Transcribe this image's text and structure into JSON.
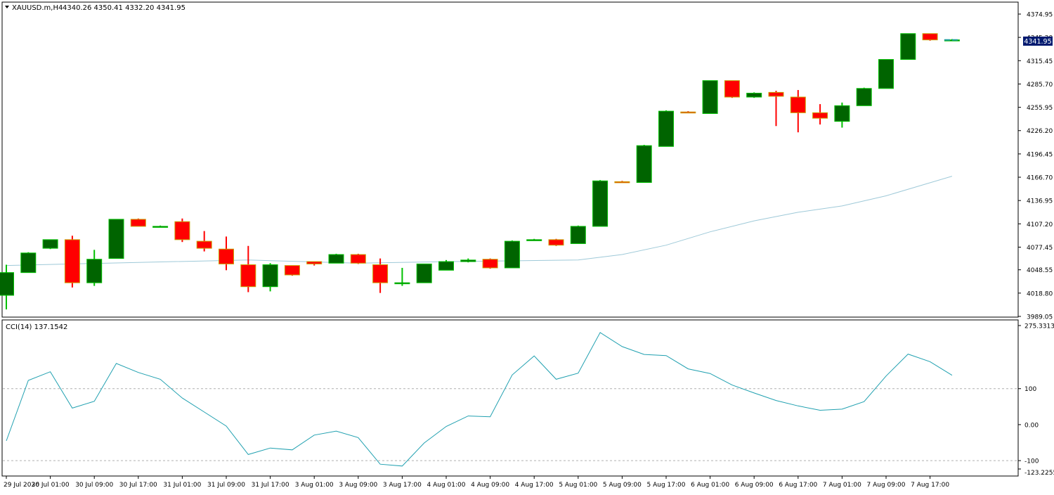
{
  "header": {
    "symbol": "XAUUSD.m,H4",
    "ohlc": "4340.26 4350.41 4332.20 4341.95",
    "price_tag": "4341.95"
  },
  "indicator": {
    "label": "CCI(14) 137.1542"
  },
  "colors": {
    "bull_body": "#006400",
    "bull_wick": "#00c000",
    "bear_body": "#ff0000",
    "bear_wick": "#ff0000",
    "ma_line": "#9ec9d8",
    "cci_line": "#20a0b0",
    "price_tag_bg": "#001a70",
    "bid_line": "#20a0a0"
  },
  "chart_data": [
    {
      "type": "candlestick",
      "symbol": "XAUUSD.m",
      "timeframe": "H4",
      "ylim": [
        3989.05,
        4389.0
      ],
      "y_ticks": [
        "4374.95",
        "4345.20",
        "4315.45",
        "4285.70",
        "4255.95",
        "4226.20",
        "4196.45",
        "4166.70",
        "4136.95",
        "4107.20",
        "4077.45",
        "4048.55",
        "4018.80",
        "3989.05"
      ],
      "y_tick_values": [
        4374.95,
        4345.2,
        4315.45,
        4285.7,
        4255.95,
        4226.2,
        4196.45,
        4166.7,
        4136.95,
        4107.2,
        4077.45,
        4048.55,
        4018.8,
        3989.05
      ],
      "x_labels": [
        "29 Jul 2026",
        "30 Jul 01:00",
        "30 Jul 09:00",
        "30 Jul 17:00",
        "31 Jul 01:00",
        "31 Jul 09:00",
        "31 Jul 17:00",
        "3 Aug 01:00",
        "3 Aug 09:00",
        "3 Aug 17:00",
        "4 Aug 01:00",
        "4 Aug 09:00",
        "4 Aug 17:00",
        "5 Aug 01:00",
        "5 Aug 09:00",
        "5 Aug 17:00",
        "6 Aug 01:00",
        "6 Aug 09:00",
        "6 Aug 17:00",
        "7 Aug 01:00",
        "7 Aug 09:00",
        "7 Aug 17:00"
      ],
      "candles": [
        {
          "o": 4016,
          "h": 4055,
          "l": 3998,
          "c": 4045
        },
        {
          "o": 4045,
          "h": 4071,
          "l": 4045,
          "c": 4070
        },
        {
          "o": 4076,
          "h": 4087,
          "l": 4075,
          "c": 4087
        },
        {
          "o": 4087,
          "h": 4092,
          "l": 4026,
          "c": 4032
        },
        {
          "o": 4032,
          "h": 4074,
          "l": 4028,
          "c": 4062
        },
        {
          "o": 4063,
          "h": 4113,
          "l": 4063,
          "c": 4113
        },
        {
          "o": 4113,
          "h": 4114,
          "l": 4104,
          "c": 4104
        },
        {
          "o": 4104,
          "h": 4105,
          "l": 4103,
          "c": 4104
        },
        {
          "o": 4110,
          "h": 4114,
          "l": 4084,
          "c": 4087
        },
        {
          "o": 4085,
          "h": 4098,
          "l": 4072,
          "c": 4076
        },
        {
          "o": 4075,
          "h": 4091,
          "l": 4048,
          "c": 4056
        },
        {
          "o": 4055,
          "h": 4079,
          "l": 4020,
          "c": 4027
        },
        {
          "o": 4027,
          "h": 4057,
          "l": 4021,
          "c": 4055
        },
        {
          "o": 4054,
          "h": 4054,
          "l": 4041,
          "c": 4042
        },
        {
          "o": 4059,
          "h": 4059,
          "l": 4054,
          "c": 4056
        },
        {
          "o": 4057,
          "h": 4069,
          "l": 4057,
          "c": 4068
        },
        {
          "o": 4068,
          "h": 4069,
          "l": 4056,
          "c": 4057
        },
        {
          "o": 4055,
          "h": 4063,
          "l": 4019,
          "c": 4032
        },
        {
          "o": 4031,
          "h": 4051,
          "l": 4028,
          "c": 4032
        },
        {
          "o": 4032,
          "h": 4056,
          "l": 4032,
          "c": 4056
        },
        {
          "o": 4048,
          "h": 4061,
          "l": 4048,
          "c": 4059
        },
        {
          "o": 4059,
          "h": 4063,
          "l": 4058,
          "c": 4061
        },
        {
          "o": 4062,
          "h": 4063,
          "l": 4050,
          "c": 4051
        },
        {
          "o": 4051,
          "h": 4086,
          "l": 4051,
          "c": 4085
        },
        {
          "o": 4087,
          "h": 4088,
          "l": 4086,
          "c": 4087
        },
        {
          "o": 4087,
          "h": 4088,
          "l": 4079,
          "c": 4080
        },
        {
          "o": 4082,
          "h": 4105,
          "l": 4082,
          "c": 4104
        },
        {
          "o": 4104,
          "h": 4163,
          "l": 4104,
          "c": 4162
        },
        {
          "o": 4161,
          "h": 4162,
          "l": 4160,
          "c": 4160
        },
        {
          "o": 4160,
          "h": 4208,
          "l": 4160,
          "c": 4207
        },
        {
          "o": 4206,
          "h": 4252,
          "l": 4206,
          "c": 4251
        },
        {
          "o": 4250,
          "h": 4251,
          "l": 4249,
          "c": 4249
        },
        {
          "o": 4248,
          "h": 4290,
          "l": 4248,
          "c": 4290
        },
        {
          "o": 4290,
          "h": 4290,
          "l": 4268,
          "c": 4269
        },
        {
          "o": 4269,
          "h": 4275,
          "l": 4268,
          "c": 4274
        },
        {
          "o": 4275,
          "h": 4277,
          "l": 4232,
          "c": 4270
        },
        {
          "o": 4269,
          "h": 4278,
          "l": 4224,
          "c": 4249
        },
        {
          "o": 4249,
          "h": 4260,
          "l": 4234,
          "c": 4242
        },
        {
          "o": 4238,
          "h": 4262,
          "l": 4230,
          "c": 4258
        },
        {
          "o": 4258,
          "h": 4281,
          "l": 4258,
          "c": 4280
        },
        {
          "o": 4280,
          "h": 4317,
          "l": 4280,
          "c": 4317
        },
        {
          "o": 4317,
          "h": 4350,
          "l": 4317,
          "c": 4350
        },
        {
          "o": 4350,
          "h": 4350,
          "l": 4341,
          "c": 4342
        },
        {
          "o": 4342,
          "h": 4343,
          "l": 4341,
          "c": 4342
        }
      ],
      "moving_average": {
        "x_index": [
          0,
          6,
          11,
          16,
          20,
          26,
          28,
          30,
          32,
          34,
          36,
          38,
          40,
          43
        ],
        "values": [
          4054,
          4058,
          4061,
          4057,
          4059,
          4061,
          4068,
          4080,
          4097,
          4111,
          4122,
          4130,
          4143,
          4168
        ]
      },
      "last_price": 4341.95
    },
    {
      "type": "line",
      "name": "CCI(14)",
      "ylim": [
        -123.2255,
        275.3313
      ],
      "y_ticks": [
        "275.3313",
        "100",
        "0.00",
        "-100",
        "-123.2255"
      ],
      "y_tick_values": [
        275.3313,
        100,
        0,
        -100,
        -123.2255
      ],
      "levels": [
        100,
        -100
      ],
      "values": [
        -45,
        123,
        147,
        46,
        65,
        170,
        145,
        126,
        74,
        35,
        -4,
        -83,
        -65,
        -70,
        -29,
        -18,
        -36,
        -110,
        -115,
        -51,
        -5,
        24,
        22,
        138,
        191,
        126,
        143,
        256,
        217,
        195,
        192,
        155,
        142,
        110,
        88,
        67,
        52,
        40,
        43,
        64,
        135,
        196,
        175,
        137.15
      ]
    }
  ]
}
